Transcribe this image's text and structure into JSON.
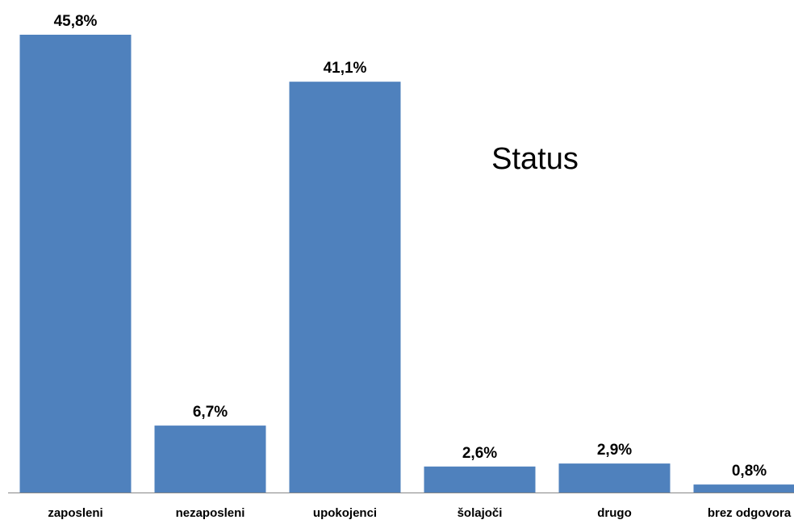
{
  "chart_data": {
    "type": "bar",
    "title": "Status",
    "categories": [
      "zaposleni",
      "nezaposleni",
      "upokojenci",
      "šolajoči",
      "drugo",
      "brez odgovora"
    ],
    "values": [
      45.8,
      6.7,
      41.1,
      2.6,
      2.9,
      0.8
    ],
    "data_labels": [
      "45,8%",
      "6,7%",
      "41,1%",
      "2,6%",
      "2,9%",
      "0,8%"
    ],
    "unit": "%",
    "xlabel": "",
    "ylabel": "",
    "ylim": [
      0,
      45.8
    ],
    "grid": false,
    "legend": "none",
    "colors": {
      "bar": "#4f81bd",
      "axis": "#868686",
      "text": "#000000"
    }
  }
}
